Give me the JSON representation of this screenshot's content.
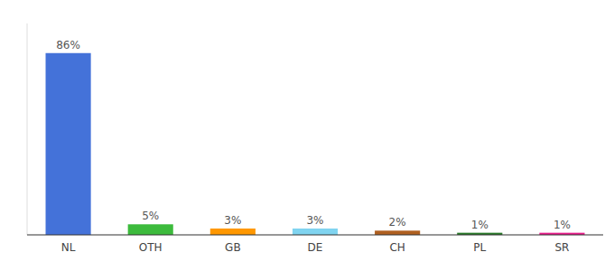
{
  "chart_data": {
    "type": "bar",
    "categories": [
      "NL",
      "OTH",
      "GB",
      "DE",
      "CH",
      "PL",
      "SR"
    ],
    "values": [
      86,
      5,
      3,
      3,
      2,
      1,
      1
    ],
    "value_labels": [
      "86%",
      "5%",
      "3%",
      "3%",
      "2%",
      "1%",
      "1%"
    ],
    "colors": [
      "#4472d9",
      "#3dbb3d",
      "#ff9800",
      "#80d4f0",
      "#b06020",
      "#2a7a2a",
      "#e91e8c"
    ],
    "ylim": [
      0,
      100
    ],
    "data_labels": true,
    "tick_labels": "x",
    "grid": false
  }
}
